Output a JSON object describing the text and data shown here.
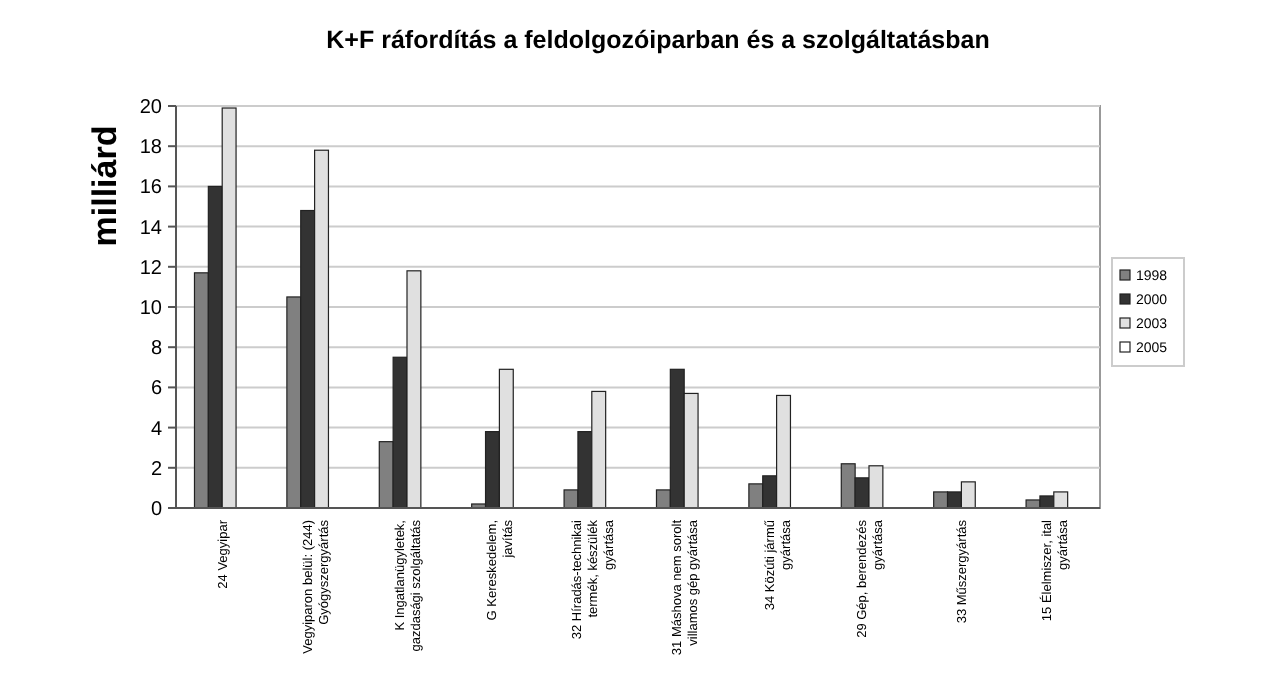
{
  "chart_data": {
    "type": "bar",
    "title": "K+F ráfordítás a feldolgozóiparban és a szolgáltatásban",
    "ylabel": "milliárd",
    "categories": [
      "24 Vegyipar",
      "Vegyiparon belül: (244)\nGyógyszergyártás",
      "K Ingatlanügyletek,\ngazdasági szolgáltatás",
      "G Kereskedelem,\njavítás",
      "32 Híradás-technikai\ntermék, készülék\ngyártása",
      "31 Máshova nem sorolt\nvillamos gép gyártása",
      "34 Közúti jármű\ngyártása",
      "29 Gép, berendezés\ngyártása",
      "33 Műszergyártás",
      "15 Élelmiszer, ital\ngyártása"
    ],
    "series": [
      {
        "name": "1998",
        "color": "#808080",
        "values": [
          11.7,
          10.5,
          3.3,
          0.2,
          0.9,
          0.9,
          1.2,
          2.2,
          0.8,
          0.4
        ]
      },
      {
        "name": "2000",
        "color": "#333333",
        "values": [
          16,
          14.8,
          7.5,
          3.8,
          3.8,
          6.9,
          1.6,
          1.5,
          0.8,
          0.6
        ]
      },
      {
        "name": "2003",
        "color": "#e0e0e0",
        "values": [
          19.9,
          17.8,
          11.8,
          6.9,
          5.8,
          5.7,
          5.6,
          2.1,
          1.3,
          0.8
        ]
      },
      {
        "name": "2005",
        "color": "#ffffff",
        "values": [
          null,
          null,
          null,
          null,
          null,
          null,
          null,
          null,
          null,
          null
        ]
      }
    ],
    "ylim": [
      0,
      20
    ],
    "yticks": [
      0,
      2,
      4,
      6,
      8,
      10,
      12,
      14,
      16,
      18,
      20
    ],
    "grid": "y",
    "legend": "right"
  }
}
